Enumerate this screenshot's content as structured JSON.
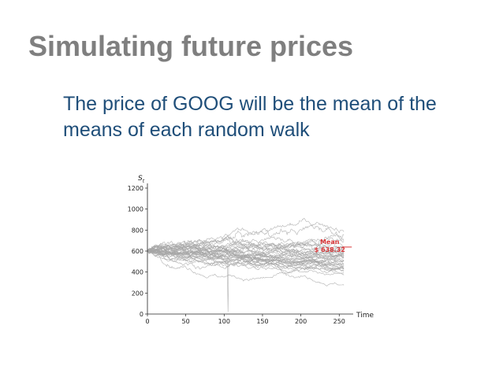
{
  "slide": {
    "title": "Simulating future prices",
    "body": "The price of GOOG will be the mean of the means of each random walk"
  },
  "colors": {
    "title": "#7f7f7f",
    "body": "#1f4e79",
    "walks": "#a6a6a6",
    "mean_label": "#d9383a",
    "axis": "#222222"
  },
  "chart_data": {
    "type": "line",
    "xlabel": "Time",
    "ylabel": "S_t",
    "xlim": [
      0,
      260
    ],
    "ylim": [
      0,
      1200
    ],
    "x_ticks": [
      0,
      50,
      100,
      150,
      200,
      250
    ],
    "y_ticks": [
      0,
      200,
      400,
      600,
      800,
      1000,
      1200
    ],
    "num_walks": 40,
    "start_price": 600,
    "annotation": {
      "label_line1": "Mean",
      "label_line2": "$ 638.32",
      "value": 638.32,
      "x": 252
    },
    "grid": false,
    "legend": "none"
  }
}
